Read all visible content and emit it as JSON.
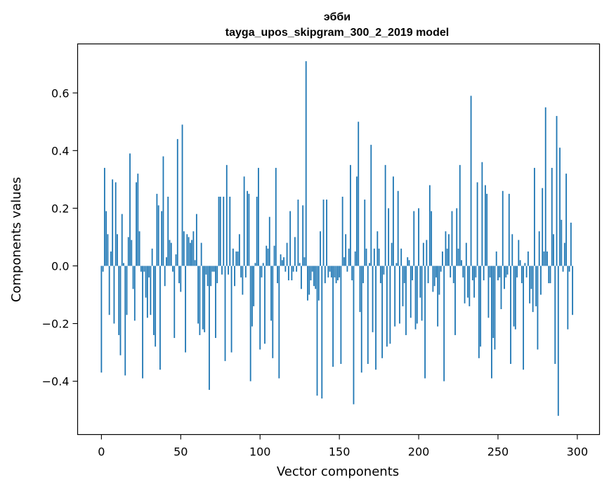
{
  "chart_data": {
    "type": "bar",
    "title": "эбби",
    "subtitle": "tayga_upos_skipgram_300_2_2019 model",
    "xlabel": "Vector components",
    "ylabel": "Components values",
    "xlim": [
      -15,
      314
    ],
    "ylim": [
      -0.585,
      0.77
    ],
    "xticks": [
      0,
      50,
      100,
      150,
      200,
      250,
      300
    ],
    "xtick_labels": [
      "0",
      "50",
      "100",
      "150",
      "200",
      "250",
      "300"
    ],
    "yticks": [
      -0.4,
      -0.2,
      0.0,
      0.2,
      0.4,
      0.6
    ],
    "ytick_labels": [
      "−0.4",
      "−0.2",
      "0.0",
      "0.2",
      "0.4",
      "0.6"
    ],
    "grid": false,
    "bar_color": "#1f77b4",
    "values": [
      -0.37,
      -0.02,
      0.34,
      0.19,
      0.11,
      -0.17,
      0.05,
      0.3,
      -0.2,
      0.29,
      0.11,
      -0.24,
      -0.31,
      0.18,
      0.01,
      -0.38,
      -0.17,
      0.1,
      0.39,
      0.09,
      -0.08,
      -0.19,
      0.29,
      0.32,
      0.12,
      -0.02,
      -0.39,
      -0.02,
      -0.11,
      -0.18,
      -0.04,
      -0.17,
      0.06,
      -0.24,
      -0.28,
      0.25,
      0.21,
      -0.36,
      0.19,
      0.38,
      -0.07,
      0.03,
      0.24,
      0.09,
      0.08,
      -0.02,
      -0.25,
      0.04,
      0.44,
      -0.06,
      -0.09,
      0.49,
      0.12,
      -0.3,
      0.11,
      0.1,
      0.08,
      0.09,
      0.12,
      0.02,
      0.18,
      -0.2,
      -0.24,
      0.08,
      -0.22,
      -0.23,
      -0.03,
      -0.07,
      -0.43,
      -0.07,
      -0.02,
      -0.02,
      -0.25,
      -0.06,
      0.24,
      0.24,
      -0.03,
      0.24,
      -0.33,
      0.35,
      -0.03,
      0.24,
      -0.3,
      0.06,
      -0.07,
      0.05,
      0.05,
      0.11,
      -0.04,
      -0.1,
      0.31,
      -0.04,
      0.26,
      0.25,
      -0.4,
      -0.21,
      -0.14,
      0.01,
      0.24,
      0.34,
      -0.29,
      -0.04,
      0.01,
      -0.27,
      0.07,
      0.06,
      0.17,
      -0.19,
      -0.32,
      0.07,
      0.34,
      -0.06,
      -0.39,
      0.04,
      0.02,
      0.03,
      -0.02,
      0.08,
      -0.05,
      0.19,
      -0.05,
      -0.02,
      0.1,
      -0.02,
      0.23,
      0.01,
      -0.08,
      0.21,
      0.03,
      0.71,
      -0.12,
      -0.1,
      -0.05,
      -0.02,
      -0.07,
      -0.08,
      -0.45,
      -0.12,
      0.12,
      -0.46,
      0.23,
      -0.06,
      0.23,
      -0.04,
      -0.02,
      -0.04,
      -0.35,
      -0.04,
      -0.06,
      -0.05,
      -0.04,
      -0.34,
      0.24,
      0.03,
      0.11,
      -0.02,
      0.06,
      0.35,
      -0.05,
      -0.48,
      0.05,
      0.31,
      0.5,
      -0.16,
      -0.37,
      -0.06,
      0.23,
      0.06,
      -0.34,
      0.01,
      0.42,
      -0.23,
      0.06,
      -0.36,
      0.12,
      0.06,
      -0.06,
      -0.32,
      -0.03,
      0.35,
      -0.28,
      0.2,
      -0.27,
      0.08,
      0.31,
      -0.21,
      0.01,
      0.26,
      -0.2,
      0.06,
      -0.14,
      -0.06,
      -0.24,
      0.03,
      0.02,
      -0.18,
      -0.05,
      0.19,
      -0.22,
      -0.2,
      0.2,
      -0.11,
      -0.19,
      0.08,
      -0.39,
      0.09,
      -0.06,
      0.28,
      0.19,
      -0.09,
      -0.07,
      -0.04,
      -0.21,
      -0.1,
      -0.02,
      0.05,
      -0.4,
      0.12,
      0.06,
      0.11,
      -0.04,
      0.19,
      -0.06,
      -0.24,
      0.2,
      0.06,
      0.35,
      0.02,
      -0.04,
      -0.13,
      0.08,
      -0.11,
      -0.14,
      0.59,
      -0.05,
      -0.11,
      -0.04,
      0.29,
      -0.32,
      -0.28,
      0.36,
      -0.05,
      0.28,
      0.25,
      -0.18,
      -0.04,
      -0.39,
      -0.25,
      -0.29,
      0.05,
      -0.05,
      -0.04,
      -0.15,
      0.26,
      -0.08,
      -0.04,
      -0.03,
      0.25,
      -0.34,
      0.11,
      -0.21,
      -0.22,
      -0.04,
      0.09,
      0.02,
      -0.06,
      -0.36,
      0.01,
      -0.04,
      0.05,
      -0.13,
      -0.08,
      -0.16,
      0.34,
      -0.14,
      -0.29,
      0.12,
      -0.1,
      0.27,
      0.05,
      0.55,
      0.05,
      -0.06,
      -0.06,
      0.34,
      0.11,
      -0.34,
      0.52,
      -0.52,
      0.41,
      0.16,
      -0.02,
      0.08,
      0.32,
      -0.22,
      -0.02,
      0.15,
      -0.17
    ]
  }
}
